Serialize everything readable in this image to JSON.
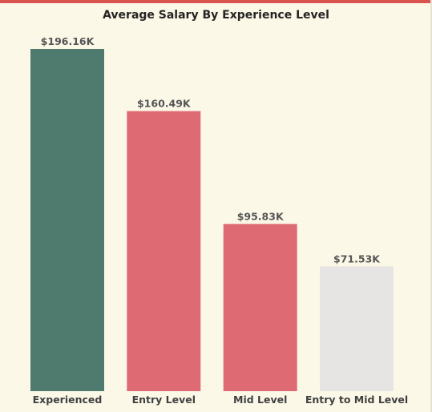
{
  "colors": {
    "background": "#fcf8e8",
    "top_accent": "#d9534f",
    "experienced": "#4f7a6e",
    "entry": "#de6b73",
    "entry_to_mid": "#e6e5e3"
  },
  "chart_data": {
    "type": "bar",
    "title": "Average Salary By Experience Level",
    "xlabel": "",
    "ylabel": "",
    "categories": [
      "Experienced",
      "Entry Level",
      "Mid Level",
      "Entry to Mid Level"
    ],
    "values": [
      196.16,
      160.49,
      95.83,
      71.53
    ],
    "value_labels": [
      "$196.16K",
      "$160.49K",
      "$95.83K",
      "$71.53K"
    ],
    "bar_colors": [
      "#4f7a6e",
      "#de6b73",
      "#de6b73",
      "#e6e5e3"
    ],
    "ylim": [
      0,
      196.16
    ],
    "grid": false,
    "legend": "none"
  }
}
